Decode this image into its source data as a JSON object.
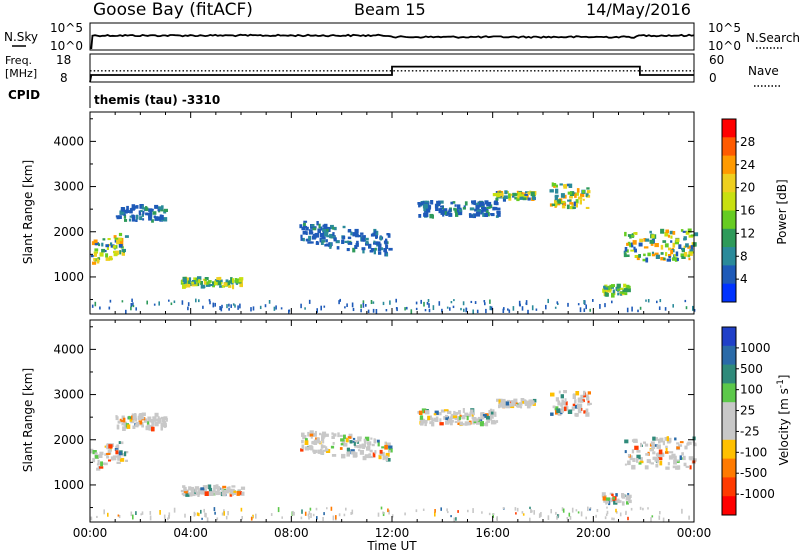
{
  "header": {
    "station": "Goose Bay (fitACF)",
    "beam": "Beam 15",
    "date": "14/May/2016"
  },
  "top_panel": {
    "left_label": "N.Sky",
    "left_ticks": [
      "10^5",
      "10^0"
    ],
    "right_label": "N.Search",
    "right_ticks": [
      "10^5",
      "10^0"
    ]
  },
  "freq_panel": {
    "left_label_1": "Freq.",
    "left_label_2": "[MHz]",
    "left_ticks": [
      "18",
      "8"
    ],
    "right_label": "Nave",
    "right_ticks": [
      "60",
      "0"
    ]
  },
  "cpid": {
    "label": "CPID",
    "value": "themis (tau) -3310"
  },
  "chart_data": [
    {
      "type": "line",
      "panel": "noise",
      "series": [
        {
          "name": "N.Sky",
          "style": "solid",
          "level": "~10^3 (near top of panel) all day"
        },
        {
          "name": "N.Search",
          "style": "dotted",
          "level": "overlapping N.Sky"
        }
      ],
      "ylim": [
        "10^0",
        "10^5"
      ],
      "xlim": [
        0,
        24
      ]
    },
    {
      "type": "line",
      "panel": "frequency",
      "series": [
        {
          "name": "Freq.",
          "style": "solid",
          "x": [
            0,
            0.05,
            12.0,
            12.0,
            21.85,
            21.85,
            24
          ],
          "y": [
            8,
            10.5,
            10.5,
            13.5,
            13.5,
            10.5,
            10.5
          ]
        },
        {
          "name": "Nave",
          "style": "dotted",
          "x": [
            0,
            24
          ],
          "y": [
            12,
            12
          ]
        }
      ],
      "ylim": [
        8,
        18
      ],
      "xlim": [
        0,
        24
      ]
    },
    {
      "type": "heatmap",
      "panel": "power",
      "ylabel": "Slant Range [km]",
      "colorbar_label": "Power [dB]",
      "colorbar_ticks": [
        "28",
        "24",
        "20",
        "16",
        "12",
        "8",
        "4"
      ],
      "colorbar_colors": [
        "#ff0000",
        "#ff5a00",
        "#ff9a00",
        "#eecf1f",
        "#c8e010",
        "#66cc22",
        "#2e9a5a",
        "#2a8a9a",
        "#1e5ab8",
        "#0033ff"
      ],
      "yticks": [
        1000,
        2000,
        3000,
        4000
      ],
      "ylim": [
        180,
        4650
      ],
      "xticks": [
        "00:00",
        "04:00",
        "08:00",
        "12:00",
        "16:00",
        "20:00",
        "00:00"
      ],
      "xlim": [
        0,
        24
      ],
      "patches": [
        {
          "t0": 0.0,
          "t1": 1.4,
          "r0": 1300,
          "r1": 2200,
          "level": "mixed"
        },
        {
          "t0": 1.0,
          "t1": 3.0,
          "r0": 2100,
          "r1": 2700,
          "level": "low"
        },
        {
          "t0": 3.6,
          "t1": 6.0,
          "r0": 700,
          "r1": 1050,
          "level": "high"
        },
        {
          "t0": 8.3,
          "t1": 11.9,
          "r0": 1500,
          "r1": 2400,
          "level": "low"
        },
        {
          "t0": 13.0,
          "t1": 16.2,
          "r0": 2200,
          "r1": 2800,
          "level": "low"
        },
        {
          "t0": 16.0,
          "t1": 17.6,
          "r0": 2650,
          "r1": 2950,
          "level": "mixed"
        },
        {
          "t0": 18.2,
          "t1": 19.8,
          "r0": 2300,
          "r1": 3300,
          "level": "mixed"
        },
        {
          "t0": 20.3,
          "t1": 21.4,
          "r0": 500,
          "r1": 900,
          "level": "high"
        },
        {
          "t0": 21.2,
          "t1": 24.0,
          "r0": 1100,
          "r1": 2300,
          "level": "mixed"
        }
      ]
    },
    {
      "type": "heatmap",
      "panel": "velocity",
      "ylabel": "Slant Range [km]",
      "colorbar_label": "Velocity [m s^-1]",
      "colorbar_ticks": [
        "1000",
        "500",
        "100",
        "25",
        "-25",
        "-100",
        "-500",
        "-1000"
      ],
      "colorbar_colors": [
        "#2040c8",
        "#2a6aa8",
        "#2f8a7a",
        "#5cc84a",
        "#c8c8c8",
        "#c8c8c8",
        "#ffc000",
        "#ff7a00",
        "#ff3a00",
        "#ff0000"
      ],
      "yticks": [
        1000,
        2000,
        3000,
        4000
      ],
      "ylim": [
        180,
        4650
      ],
      "xticks": [
        "00:00",
        "04:00",
        "08:00",
        "12:00",
        "16:00",
        "20:00",
        "00:00"
      ],
      "xlim": [
        0,
        24
      ],
      "patches": [
        {
          "t0": 0.0,
          "t1": 1.4,
          "r0": 1300,
          "r1": 2200,
          "level": "mixed"
        },
        {
          "t0": 1.0,
          "t1": 3.0,
          "r0": 2100,
          "r1": 2700,
          "level": "low"
        },
        {
          "t0": 3.6,
          "t1": 6.0,
          "r0": 700,
          "r1": 1050,
          "level": "high"
        },
        {
          "t0": 8.3,
          "t1": 11.9,
          "r0": 1500,
          "r1": 2400,
          "level": "low"
        },
        {
          "t0": 13.0,
          "t1": 16.2,
          "r0": 2200,
          "r1": 2800,
          "level": "low"
        },
        {
          "t0": 16.0,
          "t1": 17.6,
          "r0": 2650,
          "r1": 2950,
          "level": "mixed"
        },
        {
          "t0": 18.2,
          "t1": 19.8,
          "r0": 2300,
          "r1": 3300,
          "level": "mixed"
        },
        {
          "t0": 20.3,
          "t1": 21.4,
          "r0": 500,
          "r1": 900,
          "level": "high"
        },
        {
          "t0": 21.2,
          "t1": 24.0,
          "r0": 1100,
          "r1": 2300,
          "level": "mixed"
        }
      ]
    }
  ],
  "xaxis": {
    "label": "Time UT"
  }
}
